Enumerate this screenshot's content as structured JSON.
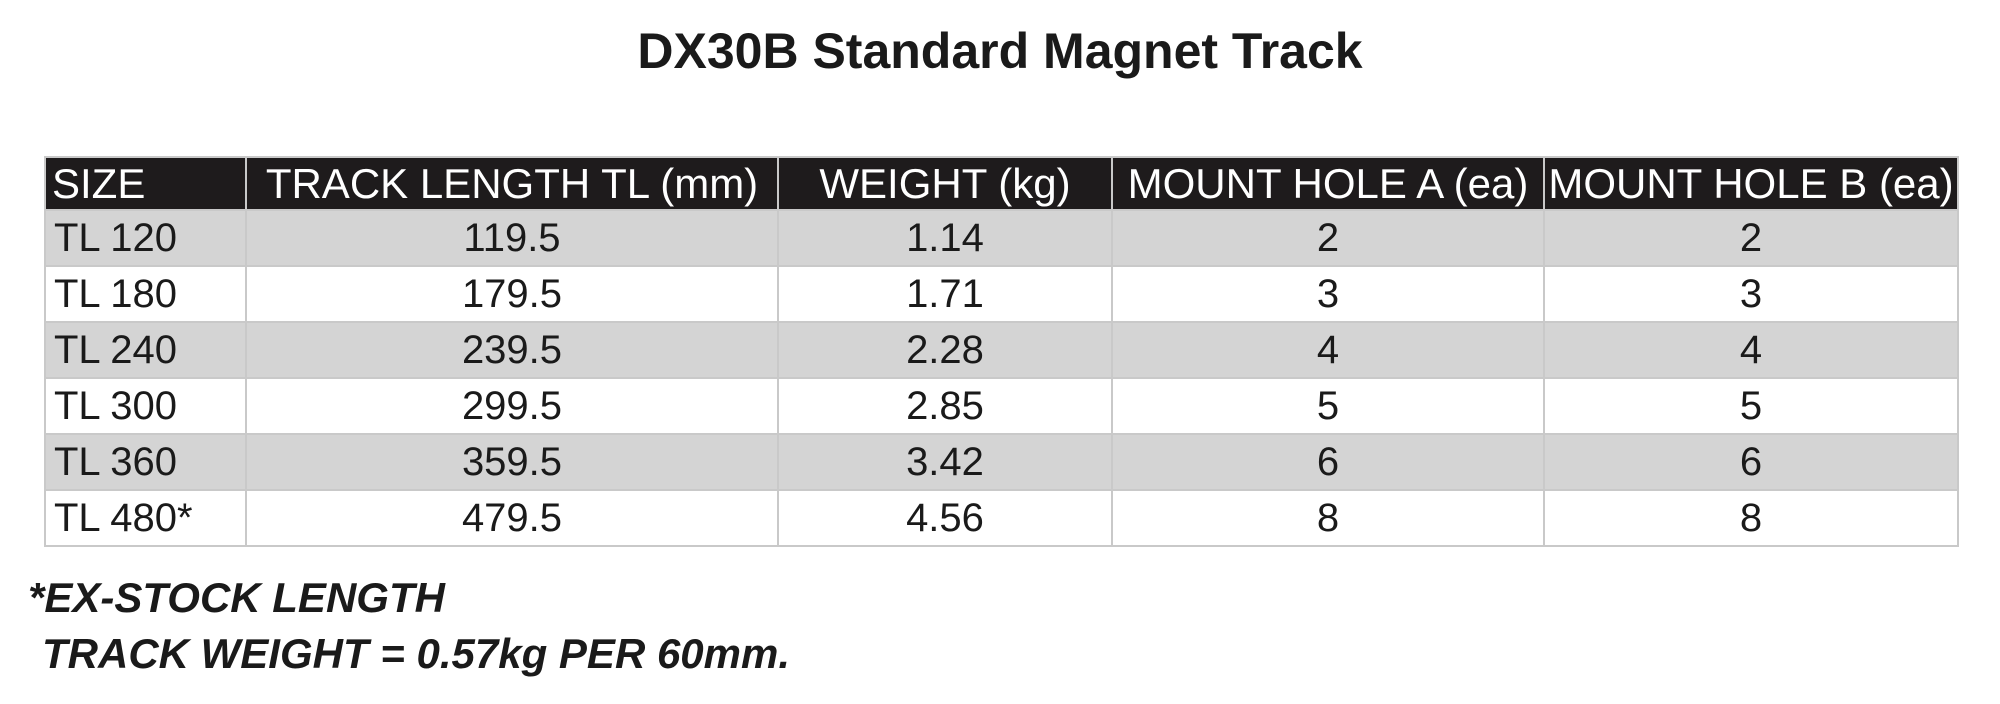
{
  "title": "DX30B Standard Magnet Track",
  "table": {
    "headers": [
      "SIZE",
      "TRACK LENGTH TL (mm)",
      "WEIGHT (kg)",
      "MOUNT HOLE A (ea)",
      "MOUNT HOLE B (ea)"
    ],
    "rows": [
      [
        "TL 120",
        "119.5",
        "1.14",
        "2",
        "2"
      ],
      [
        "TL 180",
        "179.5",
        "1.71",
        "3",
        "3"
      ],
      [
        "TL 240",
        "239.5",
        "2.28",
        "4",
        "4"
      ],
      [
        "TL 300",
        "299.5",
        "2.85",
        "5",
        "5"
      ],
      [
        "TL 360",
        "359.5",
        "3.42",
        "6",
        "6"
      ],
      [
        "TL 480*",
        "479.5",
        "4.56",
        "8",
        "8"
      ]
    ]
  },
  "notes": [
    "*EX-STOCK LENGTH",
    "TRACK WEIGHT = 0.57kg PER 60mm."
  ],
  "colors": {
    "header_bg": "#1e1b1c",
    "header_text": "#ffffff",
    "shaded_row": "#d4d4d4",
    "plain_row": "#ffffff",
    "border": "#c9c9c9"
  }
}
